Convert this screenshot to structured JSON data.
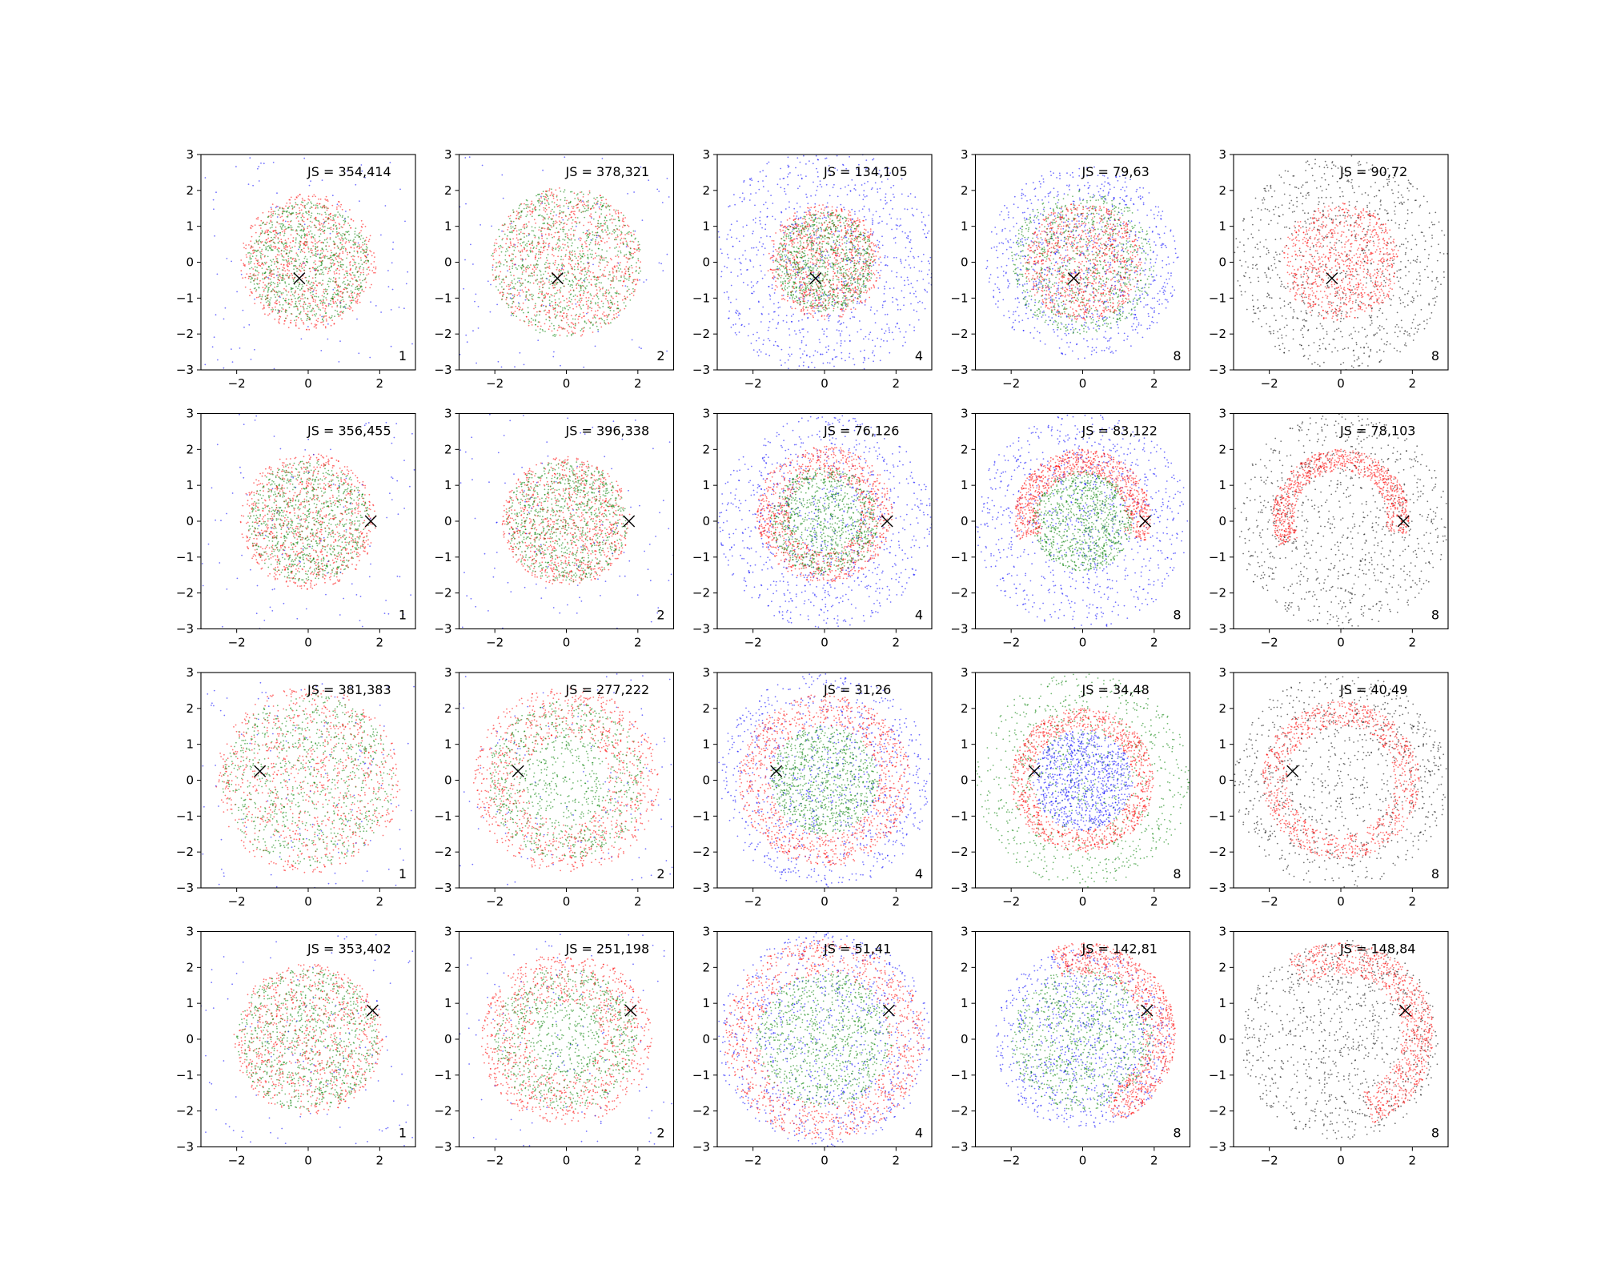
{
  "figure": {
    "rows": 4,
    "cols": 5
  },
  "colors": {
    "red": "#ff0000",
    "green": "#008000",
    "blue": "#0000ff",
    "black": "#000000",
    "marker": "#000000"
  },
  "chart_data": [
    {
      "type": "scatter",
      "row": 0,
      "col": 0,
      "annotation": "JS = 354,414",
      "corner_label": "1",
      "marker": {
        "x": -0.25,
        "y": -0.45,
        "symbol": "x"
      },
      "xlim": [
        -3,
        3
      ],
      "ylim": [
        -3,
        3
      ],
      "xticks": [
        -2,
        0,
        2
      ],
      "yticks": [
        -3,
        -2,
        -1,
        0,
        1,
        2,
        3
      ],
      "series": [
        {
          "color": "red",
          "role": "blob",
          "radius": 1.9
        },
        {
          "color": "green",
          "role": "blob",
          "radius": 1.7
        },
        {
          "color": "blue",
          "role": "background"
        }
      ]
    },
    {
      "type": "scatter",
      "row": 0,
      "col": 1,
      "annotation": "JS = 378,321",
      "corner_label": "2",
      "marker": {
        "x": -0.25,
        "y": -0.45,
        "symbol": "x"
      },
      "xlim": [
        -3,
        3
      ],
      "ylim": [
        -3,
        3
      ],
      "xticks": [
        -2,
        0,
        2
      ],
      "yticks": [
        -3,
        -2,
        -1,
        0,
        1,
        2,
        3
      ],
      "series": [
        {
          "color": "red",
          "role": "blob",
          "radius": 2.1
        },
        {
          "color": "green",
          "role": "blob",
          "radius": 2.1
        },
        {
          "color": "blue",
          "role": "background"
        }
      ]
    },
    {
      "type": "scatter",
      "row": 0,
      "col": 2,
      "annotation": "JS = 134,105",
      "corner_label": "4",
      "marker": {
        "x": -0.25,
        "y": -0.45,
        "symbol": "x"
      },
      "xlim": [
        -3,
        3
      ],
      "ylim": [
        -3,
        3
      ],
      "xticks": [
        -2,
        0,
        2
      ],
      "yticks": [
        -3,
        -2,
        -1,
        0,
        1,
        2,
        3
      ],
      "series": [
        {
          "color": "blue",
          "role": "blob",
          "radius": 3.2
        },
        {
          "color": "red",
          "role": "blob",
          "radius": 1.6
        },
        {
          "color": "green",
          "role": "blob",
          "radius": 1.4
        }
      ]
    },
    {
      "type": "scatter",
      "row": 0,
      "col": 3,
      "annotation": "JS = 79,63",
      "corner_label": "8",
      "marker": {
        "x": -0.25,
        "y": -0.45,
        "symbol": "x"
      },
      "xlim": [
        -3,
        3
      ],
      "ylim": [
        -3,
        3
      ],
      "xticks": [
        -2,
        0,
        2
      ],
      "yticks": [
        -3,
        -2,
        -1,
        0,
        1,
        2,
        3
      ],
      "series": [
        {
          "color": "blue",
          "role": "blob",
          "radius": 2.7
        },
        {
          "color": "green",
          "role": "blob",
          "radius": 2.0
        },
        {
          "color": "red",
          "role": "blob",
          "radius": 1.65
        }
      ]
    },
    {
      "type": "scatter",
      "row": 0,
      "col": 4,
      "annotation": "JS = 90,72",
      "corner_label": "8",
      "marker": {
        "x": -0.25,
        "y": -0.45,
        "symbol": "x"
      },
      "xlim": [
        -3,
        3
      ],
      "ylim": [
        -3,
        3
      ],
      "xticks": [
        -2,
        0,
        2
      ],
      "yticks": [
        -3,
        -2,
        -1,
        0,
        1,
        2,
        3
      ],
      "series": [
        {
          "color": "black",
          "role": "blob",
          "radius": 3.0
        },
        {
          "color": "red",
          "role": "blob",
          "radius": 1.65
        }
      ]
    },
    {
      "type": "scatter",
      "row": 1,
      "col": 0,
      "annotation": "JS = 356,455",
      "corner_label": "1",
      "marker": {
        "x": 1.75,
        "y": 0.0,
        "symbol": "x"
      },
      "xlim": [
        -3,
        3
      ],
      "ylim": [
        -3,
        3
      ],
      "xticks": [
        -2,
        0,
        2
      ],
      "yticks": [
        -3,
        -2,
        -1,
        0,
        1,
        2,
        3
      ],
      "series": [
        {
          "color": "red",
          "role": "blob",
          "radius": 1.9
        },
        {
          "color": "green",
          "role": "blob",
          "radius": 1.7
        },
        {
          "color": "blue",
          "role": "background"
        }
      ]
    },
    {
      "type": "scatter",
      "row": 1,
      "col": 1,
      "annotation": "JS = 396,338",
      "corner_label": "2",
      "marker": {
        "x": 1.75,
        "y": 0.0,
        "symbol": "x"
      },
      "xlim": [
        -3,
        3
      ],
      "ylim": [
        -3,
        3
      ],
      "xticks": [
        -2,
        0,
        2
      ],
      "yticks": [
        -3,
        -2,
        -1,
        0,
        1,
        2,
        3
      ],
      "series": [
        {
          "color": "red",
          "role": "blob",
          "radius": 1.8
        },
        {
          "color": "green",
          "role": "blob",
          "radius": 1.7
        },
        {
          "color": "blue",
          "role": "background"
        }
      ]
    },
    {
      "type": "scatter",
      "row": 1,
      "col": 2,
      "annotation": "JS = 76,126",
      "corner_label": "4",
      "marker": {
        "x": 1.75,
        "y": 0.0,
        "symbol": "x"
      },
      "xlim": [
        -3,
        3
      ],
      "ylim": [
        -3,
        3
      ],
      "xticks": [
        -2,
        0,
        2
      ],
      "yticks": [
        -3,
        -2,
        -1,
        0,
        1,
        2,
        3
      ],
      "series": [
        {
          "color": "blue",
          "role": "blob",
          "radius": 3.0
        },
        {
          "color": "red",
          "role": "ring",
          "inner": 1.0,
          "outer": 1.9,
          "cx": 0,
          "cy": 0.2
        },
        {
          "color": "green",
          "role": "blob",
          "radius": 1.5
        }
      ]
    },
    {
      "type": "scatter",
      "row": 1,
      "col": 3,
      "annotation": "JS = 83,122",
      "corner_label": "8",
      "marker": {
        "x": 1.75,
        "y": 0.0,
        "symbol": "x"
      },
      "xlim": [
        -3,
        3
      ],
      "ylim": [
        -3,
        3
      ],
      "xticks": [
        -2,
        0,
        2
      ],
      "yticks": [
        -3,
        -2,
        -1,
        0,
        1,
        2,
        3
      ],
      "series": [
        {
          "color": "blue",
          "role": "blob",
          "radius": 3.0
        },
        {
          "color": "red",
          "role": "arc",
          "inner": 1.2,
          "outer": 1.9,
          "cx": 0,
          "cy": 0.1,
          "from": -20,
          "to": 200
        },
        {
          "color": "green",
          "role": "blob",
          "radius": 1.4
        }
      ]
    },
    {
      "type": "scatter",
      "row": 1,
      "col": 4,
      "annotation": "JS = 78,103",
      "corner_label": "8",
      "marker": {
        "x": 1.75,
        "y": 0.0,
        "symbol": "x"
      },
      "xlim": [
        -3,
        3
      ],
      "ylim": [
        -3,
        3
      ],
      "xticks": [
        -2,
        0,
        2
      ],
      "yticks": [
        -3,
        -2,
        -1,
        0,
        1,
        2,
        3
      ],
      "series": [
        {
          "color": "black",
          "role": "blob",
          "radius": 3.0
        },
        {
          "color": "red",
          "role": "arc",
          "inner": 1.3,
          "outer": 1.9,
          "cx": 0,
          "cy": 0.1,
          "from": -15,
          "to": 205
        }
      ]
    },
    {
      "type": "scatter",
      "row": 2,
      "col": 0,
      "annotation": "JS = 381,383",
      "corner_label": "1",
      "marker": {
        "x": -1.35,
        "y": 0.25,
        "symbol": "x"
      },
      "xlim": [
        -3,
        3
      ],
      "ylim": [
        -3,
        3
      ],
      "xticks": [
        -2,
        0,
        2
      ],
      "yticks": [
        -3,
        -2,
        -1,
        0,
        1,
        2,
        3
      ],
      "series": [
        {
          "color": "red",
          "role": "blob",
          "radius": 2.6
        },
        {
          "color": "green",
          "role": "blob",
          "radius": 2.4
        },
        {
          "color": "blue",
          "role": "background"
        }
      ]
    },
    {
      "type": "scatter",
      "row": 2,
      "col": 1,
      "annotation": "JS = 277,222",
      "corner_label": "2",
      "marker": {
        "x": -1.35,
        "y": 0.25,
        "symbol": "x"
      },
      "xlim": [
        -3,
        3
      ],
      "ylim": [
        -3,
        3
      ],
      "xticks": [
        -2,
        0,
        2
      ],
      "yticks": [
        -3,
        -2,
        -1,
        0,
        1,
        2,
        3
      ],
      "series": [
        {
          "color": "red",
          "role": "ring",
          "inner": 1.2,
          "outer": 2.6,
          "cx": 0,
          "cy": 0
        },
        {
          "color": "green",
          "role": "blob",
          "radius": 2.2
        },
        {
          "color": "blue",
          "role": "background"
        }
      ]
    },
    {
      "type": "scatter",
      "row": 2,
      "col": 2,
      "annotation": "JS = 31,26",
      "corner_label": "4",
      "marker": {
        "x": -1.35,
        "y": 0.25,
        "symbol": "x"
      },
      "xlim": [
        -3,
        3
      ],
      "ylim": [
        -3,
        3
      ],
      "xticks": [
        -2,
        0,
        2
      ],
      "yticks": [
        -3,
        -2,
        -1,
        0,
        1,
        2,
        3
      ],
      "series": [
        {
          "color": "blue",
          "role": "blob",
          "radius": 3.0
        },
        {
          "color": "red",
          "role": "ring",
          "inner": 1.5,
          "outer": 2.4,
          "cx": 0,
          "cy": 0
        },
        {
          "color": "green",
          "role": "blob",
          "radius": 1.5
        }
      ]
    },
    {
      "type": "scatter",
      "row": 2,
      "col": 3,
      "annotation": "JS = 34,48",
      "corner_label": "8",
      "marker": {
        "x": -1.35,
        "y": 0.25,
        "symbol": "x"
      },
      "xlim": [
        -3,
        3
      ],
      "ylim": [
        -3,
        3
      ],
      "xticks": [
        -2,
        0,
        2
      ],
      "yticks": [
        -3,
        -2,
        -1,
        0,
        1,
        2,
        3
      ],
      "series": [
        {
          "color": "green",
          "role": "blob",
          "radius": 3.0
        },
        {
          "color": "red",
          "role": "ring",
          "inner": 1.4,
          "outer": 2.0,
          "cx": 0,
          "cy": 0
        },
        {
          "color": "blue",
          "role": "blob",
          "radius": 1.4
        }
      ]
    },
    {
      "type": "scatter",
      "row": 2,
      "col": 4,
      "annotation": "JS = 40,49",
      "corner_label": "8",
      "marker": {
        "x": -1.35,
        "y": 0.25,
        "symbol": "x"
      },
      "xlim": [
        -3,
        3
      ],
      "ylim": [
        -3,
        3
      ],
      "xticks": [
        -2,
        0,
        2
      ],
      "yticks": [
        -3,
        -2,
        -1,
        0,
        1,
        2,
        3
      ],
      "series": [
        {
          "color": "black",
          "role": "blob",
          "radius": 3.0
        },
        {
          "color": "red",
          "role": "ring",
          "inner": 1.5,
          "outer": 2.2,
          "cx": 0,
          "cy": 0
        }
      ]
    },
    {
      "type": "scatter",
      "row": 3,
      "col": 0,
      "annotation": "JS = 353,402",
      "corner_label": "1",
      "marker": {
        "x": 1.8,
        "y": 0.8,
        "symbol": "x"
      },
      "xlim": [
        -3,
        3
      ],
      "ylim": [
        -3,
        3
      ],
      "xticks": [
        -2,
        0,
        2
      ],
      "yticks": [
        -3,
        -2,
        -1,
        0,
        1,
        2,
        3
      ],
      "series": [
        {
          "color": "red",
          "role": "blob",
          "radius": 2.1
        },
        {
          "color": "green",
          "role": "blob",
          "radius": 2.0
        },
        {
          "color": "blue",
          "role": "background"
        }
      ]
    },
    {
      "type": "scatter",
      "row": 3,
      "col": 1,
      "annotation": "JS = 251,198",
      "corner_label": "2",
      "marker": {
        "x": 1.8,
        "y": 0.8,
        "symbol": "x"
      },
      "xlim": [
        -3,
        3
      ],
      "ylim": [
        -3,
        3
      ],
      "xticks": [
        -2,
        0,
        2
      ],
      "yticks": [
        -3,
        -2,
        -1,
        0,
        1,
        2,
        3
      ],
      "series": [
        {
          "color": "red",
          "role": "ring",
          "inner": 1.0,
          "outer": 2.4,
          "cx": 0,
          "cy": 0
        },
        {
          "color": "green",
          "role": "blob",
          "radius": 2.0
        },
        {
          "color": "blue",
          "role": "background"
        }
      ]
    },
    {
      "type": "scatter",
      "row": 3,
      "col": 2,
      "annotation": "JS = 51,41",
      "corner_label": "4",
      "marker": {
        "x": 1.8,
        "y": 0.8,
        "symbol": "x"
      },
      "xlim": [
        -3,
        3
      ],
      "ylim": [
        -3,
        3
      ],
      "xticks": [
        -2,
        0,
        2
      ],
      "yticks": [
        -3,
        -2,
        -1,
        0,
        1,
        2,
        3
      ],
      "series": [
        {
          "color": "blue",
          "role": "blob",
          "radius": 3.0
        },
        {
          "color": "red",
          "role": "ring",
          "inner": 1.8,
          "outer": 2.8,
          "cx": 0,
          "cy": 0
        },
        {
          "color": "green",
          "role": "blob",
          "radius": 1.9
        }
      ]
    },
    {
      "type": "scatter",
      "row": 3,
      "col": 3,
      "annotation": "JS = 142,81",
      "corner_label": "8",
      "marker": {
        "x": 1.8,
        "y": 0.8,
        "symbol": "x"
      },
      "xlim": [
        -3,
        3
      ],
      "ylim": [
        -3,
        3
      ],
      "xticks": [
        -2,
        0,
        2
      ],
      "yticks": [
        -3,
        -2,
        -1,
        0,
        1,
        2,
        3
      ],
      "series": [
        {
          "color": "blue",
          "role": "blob",
          "radius": 2.5
        },
        {
          "color": "green",
          "role": "blob",
          "radius": 2.0
        },
        {
          "color": "red",
          "role": "arc",
          "inner": 1.7,
          "outer": 2.6,
          "cx": 0,
          "cy": 0.1,
          "from": -70,
          "to": 110
        }
      ]
    },
    {
      "type": "scatter",
      "row": 3,
      "col": 4,
      "annotation": "JS = 148,84",
      "corner_label": "8",
      "marker": {
        "x": 1.8,
        "y": 0.8,
        "symbol": "x"
      },
      "xlim": [
        -3,
        3
      ],
      "ylim": [
        -3,
        3
      ],
      "xticks": [
        -2,
        0,
        2
      ],
      "yticks": [
        -3,
        -2,
        -1,
        0,
        1,
        2,
        3
      ],
      "series": [
        {
          "color": "black",
          "role": "blob",
          "radius": 2.8
        },
        {
          "color": "red",
          "role": "arc",
          "inner": 1.7,
          "outer": 2.6,
          "cx": 0,
          "cy": 0.1,
          "from": -70,
          "to": 125
        }
      ]
    }
  ]
}
